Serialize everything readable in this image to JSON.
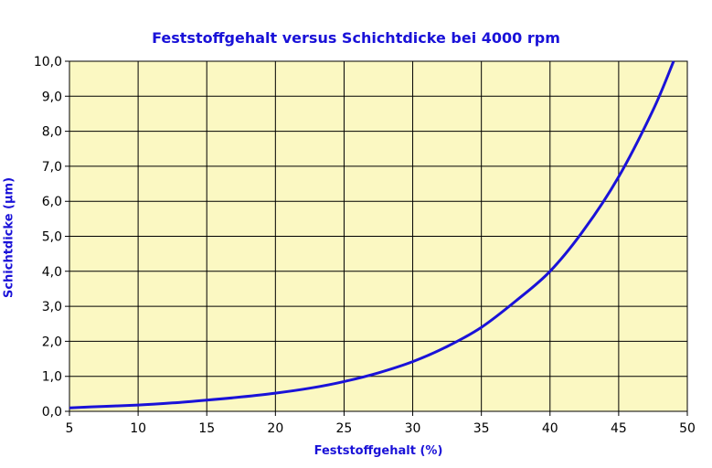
{
  "chart_data": {
    "type": "line",
    "title": "Feststoffgehalt versus Schichtdicke bei 4000 rpm",
    "xlabel": "Feststoffgehalt (%)",
    "ylabel": "Schichtdicke (µm)",
    "xlim": [
      5,
      50
    ],
    "ylim": [
      0,
      10
    ],
    "x_ticks": [
      "5",
      "10",
      "15",
      "20",
      "25",
      "30",
      "35",
      "40",
      "45",
      "50"
    ],
    "y_ticks": [
      "0,0",
      "1,0",
      "2,0",
      "3,0",
      "4,0",
      "5,0",
      "6,0",
      "7,0",
      "8,0",
      "9,0",
      "10,0"
    ],
    "grid": true,
    "legend": "none",
    "colors": {
      "plot_background": "#fbf8c2",
      "line": "#1a12d8",
      "title": "#1a12d8",
      "grid": "#000000"
    },
    "series": [
      {
        "x": [
          5,
          7.5,
          10,
          12.5,
          15,
          17.5,
          20,
          22.5,
          25,
          27.5,
          30,
          32.5,
          35,
          37.5,
          40,
          42.5,
          45,
          47.5,
          49
        ],
        "y": [
          0.1,
          0.14,
          0.18,
          0.24,
          0.32,
          0.41,
          0.52,
          0.66,
          0.85,
          1.1,
          1.42,
          1.85,
          2.4,
          3.15,
          4.0,
          5.2,
          6.7,
          8.6,
          10.0
        ]
      }
    ]
  }
}
